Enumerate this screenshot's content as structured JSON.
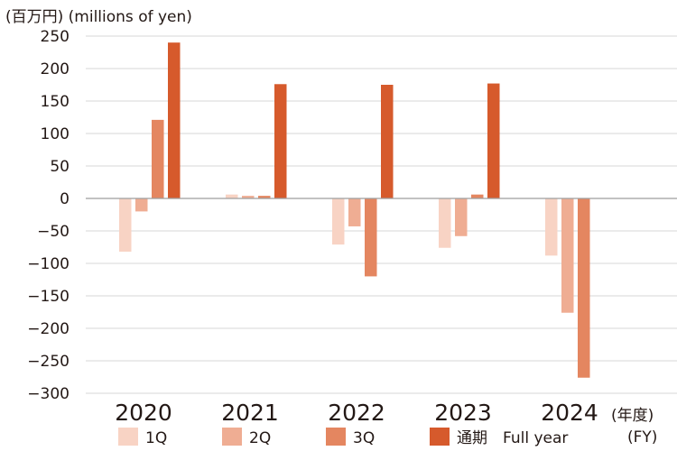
{
  "unit_label": "(百万円) (millions of yen)",
  "fy_label_jp": "(年度)",
  "fy_label_en": "(FY)",
  "colors": {
    "1Q": "#f8d3c4",
    "2Q": "#efad93",
    "3Q": "#e48660",
    "通期": "#d65a2c",
    "grid": "#d7d7d7",
    "axis": "#9e9e9e"
  },
  "chart_data": {
    "type": "bar",
    "categories": [
      "2020",
      "2021",
      "2022",
      "2023",
      "2024"
    ],
    "series": [
      {
        "name": "1Q",
        "values": [
          -82,
          6,
          -71,
          -76,
          -88
        ]
      },
      {
        "name": "2Q",
        "values": [
          -20,
          4,
          -43,
          -58,
          -176
        ]
      },
      {
        "name": "3Q",
        "values": [
          121,
          4,
          -120,
          6,
          -276
        ]
      },
      {
        "name": "通期 Full year",
        "values": [
          240,
          176,
          175,
          177,
          null
        ]
      }
    ],
    "ylim": [
      -300,
      250
    ],
    "yticks": [
      "250",
      "200",
      "150",
      "100",
      "50",
      "0",
      "-50",
      "-100",
      "-150",
      "-200",
      "-250",
      "-300"
    ],
    "grid": true,
    "legend": "bottom",
    "legend_labels": [
      "1Q",
      "2Q",
      "3Q",
      "通期　Full year"
    ]
  }
}
